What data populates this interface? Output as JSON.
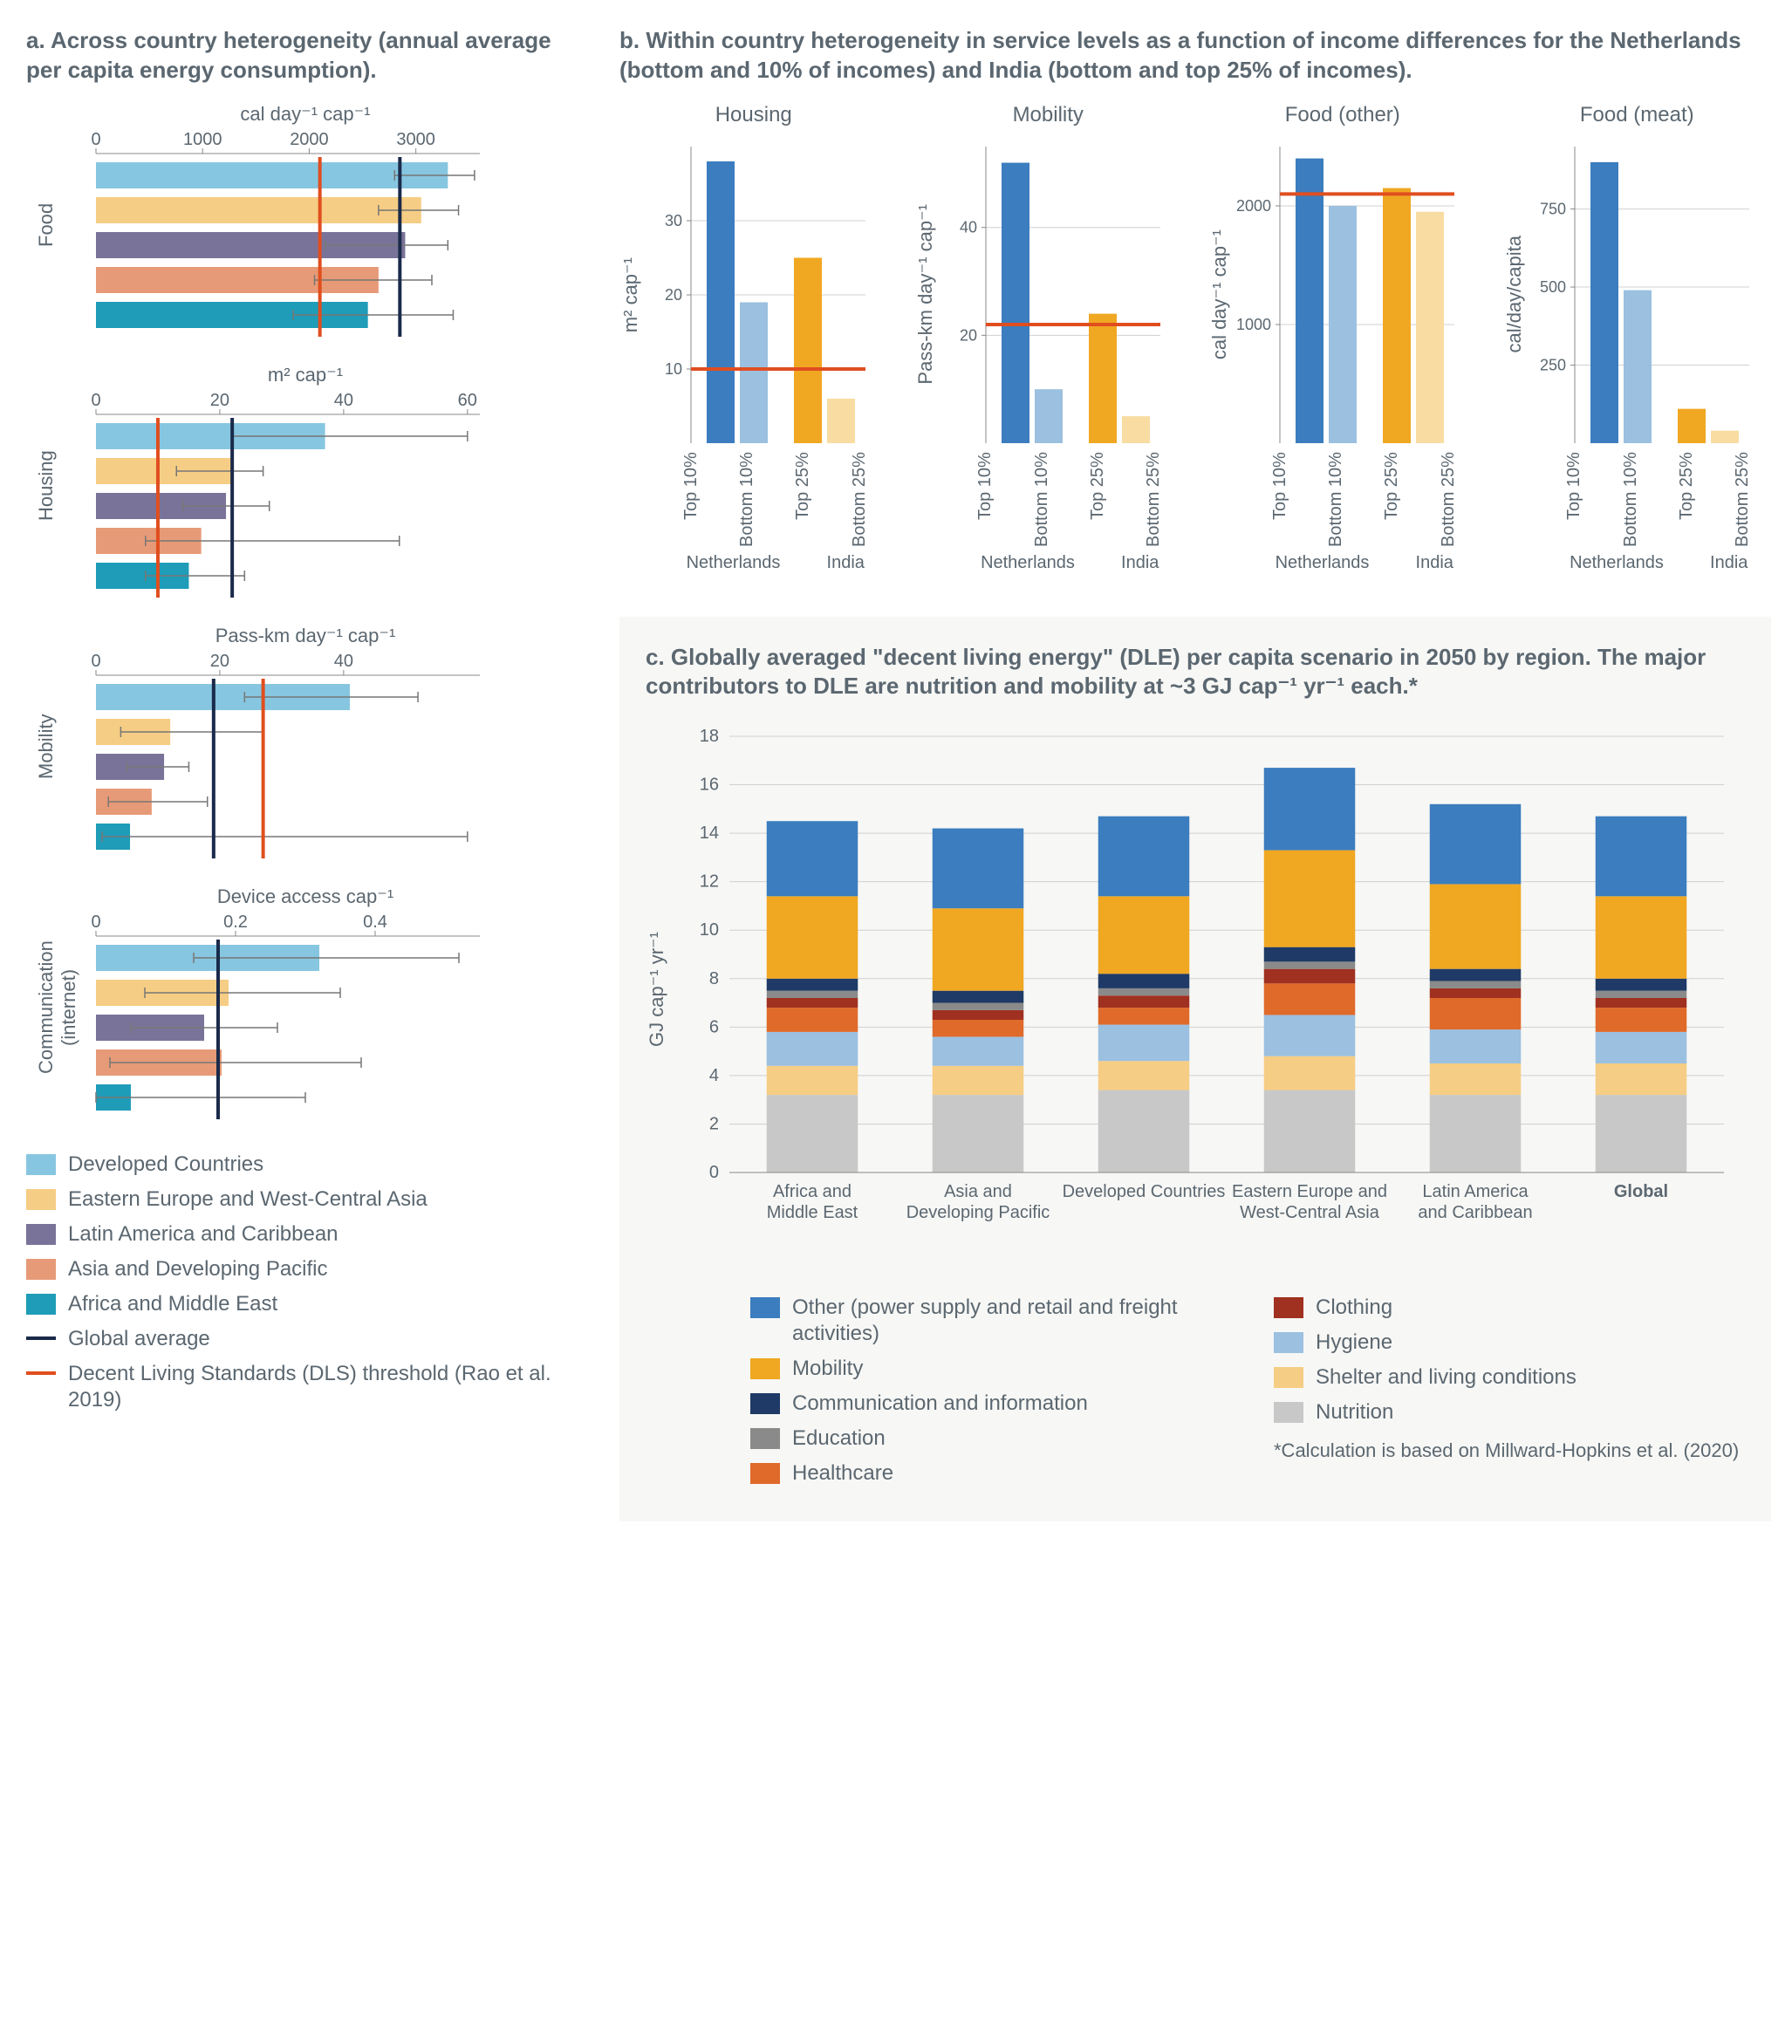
{
  "colors": {
    "grid": "#d0d0d0",
    "axis": "#888888",
    "tick_text": "#5b6770",
    "dls_line": "#e04e1f",
    "global_line": "#1a2a4a"
  },
  "panel_a": {
    "title": "a. Across country heterogeneity (annual average per capita energy consumption).",
    "regions": [
      {
        "label": "Developed Countries",
        "color": "#87c6e0"
      },
      {
        "label": "Eastern Europe and West-Central Asia",
        "color": "#f6cd84"
      },
      {
        "label": "Latin America and Caribbean",
        "color": "#7a7399"
      },
      {
        "label": "Asia and Developing Pacific",
        "color": "#e79a77"
      },
      {
        "label": "Africa and Middle East",
        "color": "#1e9cb8"
      }
    ],
    "ref_lines": [
      {
        "label": "Global average",
        "color": "#1a2a4a"
      },
      {
        "label": "Decent Living Standards (DLS) threshold (Rao et al. 2019)",
        "color": "#e04e1f"
      }
    ],
    "subplots": [
      {
        "ylab": "Food",
        "unit": "cal day⁻¹ cap⁻¹",
        "xmax": 3600,
        "ticks": [
          0,
          1000,
          2000,
          3000
        ],
        "dls": 2100,
        "global": 2850,
        "bars": [
          {
            "val": 3300,
            "lo": 2800,
            "hi": 3550
          },
          {
            "val": 3050,
            "lo": 2650,
            "hi": 3400
          },
          {
            "val": 2900,
            "lo": 2150,
            "hi": 3300
          },
          {
            "val": 2650,
            "lo": 2050,
            "hi": 3150
          },
          {
            "val": 2550,
            "lo": 1850,
            "hi": 3350
          }
        ]
      },
      {
        "ylab": "Housing",
        "unit": "m² cap⁻¹",
        "xmax": 62,
        "ticks": [
          0,
          20,
          40,
          60
        ],
        "dls": 10,
        "global": 22,
        "bars": [
          {
            "val": 37,
            "lo": 22,
            "hi": 60
          },
          {
            "val": 22,
            "lo": 13,
            "hi": 27
          },
          {
            "val": 21,
            "lo": 14,
            "hi": 28
          },
          {
            "val": 17,
            "lo": 8,
            "hi": 49
          },
          {
            "val": 15,
            "lo": 8,
            "hi": 24
          }
        ]
      },
      {
        "ylab": "Mobility",
        "unit": "Pass-km day⁻¹ cap⁻¹",
        "xmax": 62,
        "ticks": [
          0,
          20,
          40
        ],
        "dls": 27,
        "global": 19,
        "bars": [
          {
            "val": 41,
            "lo": 24,
            "hi": 52
          },
          {
            "val": 12,
            "lo": 4,
            "hi": 27
          },
          {
            "val": 11,
            "lo": 5,
            "hi": 15
          },
          {
            "val": 9,
            "lo": 2,
            "hi": 18
          },
          {
            "val": 5.5,
            "lo": 1,
            "hi": 60
          }
        ]
      },
      {
        "ylab": "Communication (internet)",
        "unit": "Device access cap⁻¹",
        "xmax": 0.55,
        "ticks": [
          0.0,
          0.2,
          0.4
        ],
        "dls": null,
        "global": 0.175,
        "bars": [
          {
            "val": 0.32,
            "lo": 0.14,
            "hi": 0.52
          },
          {
            "val": 0.19,
            "lo": 0.07,
            "hi": 0.35
          },
          {
            "val": 0.155,
            "lo": 0.05,
            "hi": 0.26
          },
          {
            "val": 0.18,
            "lo": 0.02,
            "hi": 0.38
          },
          {
            "val": 0.05,
            "lo": 0.0,
            "hi": 0.3
          }
        ]
      }
    ]
  },
  "panel_b": {
    "title": "b. Within country heterogeneity in service levels as a function of income differences for the Netherlands (bottom and 10% of incomes) and India (bottom and top 25% of incomes).",
    "countries": [
      "Netherlands",
      "India"
    ],
    "group_labels": [
      "Top 10%",
      "Bottom 10%",
      "Top 25%",
      "Bottom 25%"
    ],
    "bar_colors": [
      "#3b7dbf",
      "#9bc0e0",
      "#f0a722",
      "#f8dca2"
    ],
    "subplots": [
      {
        "title": "Housing",
        "ylab": "m² cap⁻¹",
        "ymax": 40,
        "ticks": [
          10,
          20,
          30
        ],
        "dls": 10,
        "vals": [
          38,
          19,
          25,
          6
        ]
      },
      {
        "title": "Mobility",
        "ylab": "Pass-km day⁻¹ cap⁻¹",
        "ymax": 55,
        "ticks": [
          20,
          40
        ],
        "dls": 22,
        "vals": [
          52,
          10,
          24,
          5
        ]
      },
      {
        "title": "Food (other)",
        "ylab": "cal day⁻¹ cap⁻¹",
        "ymax": 2500,
        "ticks": [
          1000,
          2000
        ],
        "dls": 2100,
        "vals": [
          2400,
          2000,
          2150,
          1950
        ]
      },
      {
        "title": "Food (meat)",
        "ylab": "cal/day/capita",
        "ymax": 950,
        "ticks": [
          250,
          500,
          750
        ],
        "dls": null,
        "vals": [
          900,
          490,
          110,
          40
        ]
      }
    ]
  },
  "panel_c": {
    "title": "c. Globally averaged \"decent living energy\" (DLE) per capita scenario in 2050 by region. The major contributors to DLE are nutrition and mobility at ~3 GJ cap⁻¹ yr⁻¹ each.*",
    "ylab": "GJ cap⁻¹ yr⁻¹",
    "ymax": 18,
    "yticks": [
      0,
      2,
      4,
      6,
      8,
      10,
      12,
      14,
      16,
      18
    ],
    "categories": [
      "Africa and Middle East",
      "Asia and Developing Pacific",
      "Developed Countries",
      "Eastern Europe and West-Central Asia",
      "Latin America and Caribbean",
      "Global"
    ],
    "stack_keys": [
      "nutrition",
      "shelter",
      "hygiene",
      "healthcare",
      "clothing",
      "education",
      "comm",
      "mobility",
      "other"
    ],
    "stack_meta": {
      "nutrition": {
        "label": "Nutrition",
        "color": "#c8c8c8"
      },
      "shelter": {
        "label": "Shelter and living conditions",
        "color": "#f6cd84"
      },
      "hygiene": {
        "label": "Hygiene",
        "color": "#9bc0e0"
      },
      "healthcare": {
        "label": "Healthcare",
        "color": "#e06a2a"
      },
      "clothing": {
        "label": "Clothing",
        "color": "#a03020"
      },
      "education": {
        "label": "Education",
        "color": "#8a8a8a"
      },
      "comm": {
        "label": "Communication and information",
        "color": "#1f3a66"
      },
      "mobility": {
        "label": "Mobility",
        "color": "#f0a722"
      },
      "other": {
        "label": "Other (power supply and retail and freight activities)",
        "color": "#3b7dbf"
      }
    },
    "stacks": [
      {
        "nutrition": 3.2,
        "shelter": 1.2,
        "hygiene": 1.4,
        "healthcare": 1.0,
        "clothing": 0.4,
        "education": 0.3,
        "comm": 0.5,
        "mobility": 3.4,
        "other": 3.1
      },
      {
        "nutrition": 3.2,
        "shelter": 1.2,
        "hygiene": 1.2,
        "healthcare": 0.7,
        "clothing": 0.4,
        "education": 0.3,
        "comm": 0.5,
        "mobility": 3.4,
        "other": 3.3
      },
      {
        "nutrition": 3.4,
        "shelter": 1.2,
        "hygiene": 1.5,
        "healthcare": 0.7,
        "clothing": 0.5,
        "education": 0.3,
        "comm": 0.6,
        "mobility": 3.2,
        "other": 3.3
      },
      {
        "nutrition": 3.4,
        "shelter": 1.4,
        "hygiene": 1.7,
        "healthcare": 1.3,
        "clothing": 0.6,
        "education": 0.3,
        "comm": 0.6,
        "mobility": 4.0,
        "other": 3.4
      },
      {
        "nutrition": 3.2,
        "shelter": 1.3,
        "hygiene": 1.4,
        "healthcare": 1.3,
        "clothing": 0.4,
        "education": 0.3,
        "comm": 0.5,
        "mobility": 3.5,
        "other": 3.3
      },
      {
        "nutrition": 3.2,
        "shelter": 1.3,
        "hygiene": 1.3,
        "healthcare": 1.0,
        "clothing": 0.4,
        "education": 0.3,
        "comm": 0.5,
        "mobility": 3.4,
        "other": 3.3
      }
    ],
    "footnote": "*Calculation is based on Millward-Hopkins et al. (2020)"
  }
}
